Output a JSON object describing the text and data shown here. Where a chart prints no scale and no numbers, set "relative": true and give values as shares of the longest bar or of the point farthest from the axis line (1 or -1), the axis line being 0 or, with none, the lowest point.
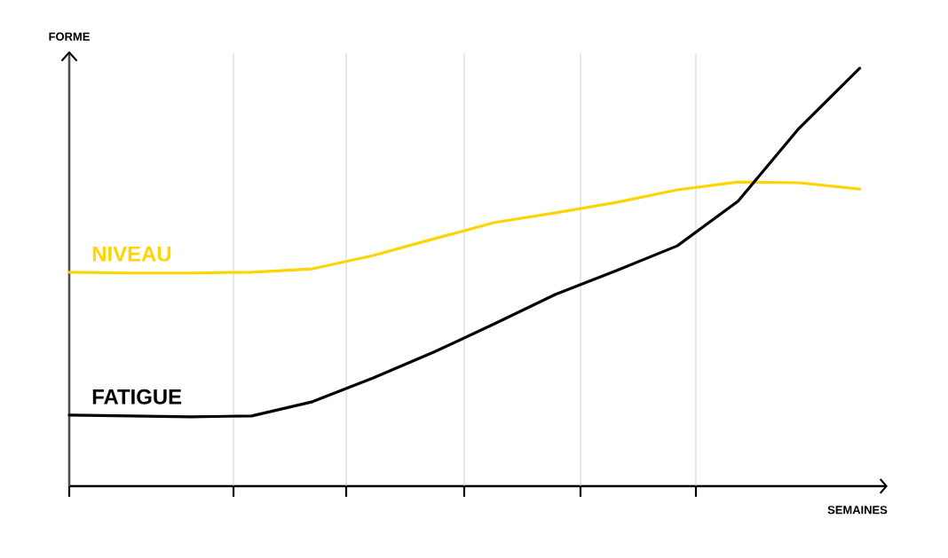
{
  "chart_data": {
    "type": "line",
    "relative": true,
    "xlabel": "SEMAINES",
    "ylabel": "FORME",
    "grid": "x",
    "legend": false,
    "categories": [
      null,
      null,
      null,
      null,
      null,
      null,
      null,
      null,
      null,
      null,
      null,
      null,
      null,
      null
    ],
    "series": [
      {
        "name": "NIVEAU",
        "color": "#ffd400",
        "values": [
          0.512,
          0.51,
          0.51,
          0.512,
          0.52,
          0.552,
          0.592,
          0.631,
          0.654,
          0.679,
          0.709,
          0.728,
          0.726,
          0.711
        ]
      },
      {
        "name": "FATIGUE",
        "color": "#000000",
        "values": [
          0.17,
          0.168,
          0.166,
          0.168,
          0.202,
          0.259,
          0.321,
          0.389,
          0.459,
          0.516,
          0.575,
          0.682,
          0.856,
          1.0
        ]
      }
    ]
  }
}
